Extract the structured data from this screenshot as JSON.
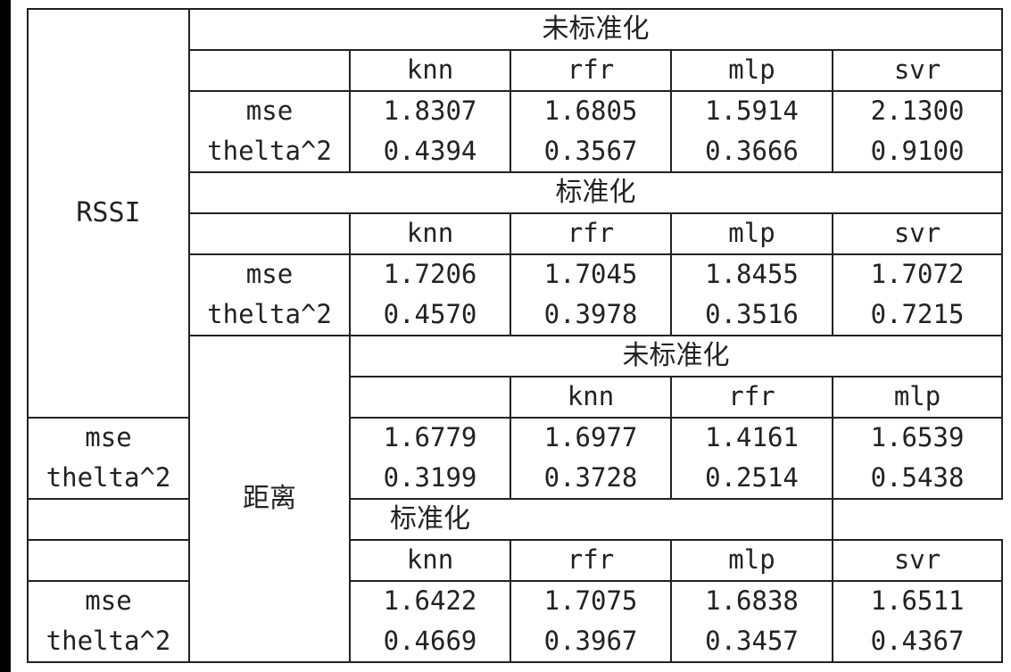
{
  "groups": [
    {
      "label": "RSSI",
      "sections": [
        {
          "title": "未标准化",
          "models": [
            "knn",
            "rfr",
            "mlp",
            "svr"
          ],
          "rows": [
            {
              "metric": "mse",
              "values": [
                "1.8307",
                "1.6805",
                "1.5914",
                "2.1300"
              ]
            },
            {
              "metric": "thelta^2",
              "values": [
                "0.4394",
                "0.3567",
                "0.3666",
                "0.9100"
              ]
            }
          ]
        },
        {
          "title": "标准化",
          "models": [
            "knn",
            "rfr",
            "mlp",
            "svr"
          ],
          "rows": [
            {
              "metric": "mse",
              "values": [
                "1.7206",
                "1.7045",
                "1.8455",
                "1.7072"
              ]
            },
            {
              "metric": "thelta^2",
              "values": [
                "0.4570",
                "0.3978",
                "0.3516",
                "0.7215"
              ]
            }
          ]
        }
      ]
    },
    {
      "label": "距离",
      "sections": [
        {
          "title": "未标准化",
          "models": [
            "knn",
            "rfr",
            "mlp",
            "svr"
          ],
          "rows": [
            {
              "metric": "mse",
              "values": [
                "1.6779",
                "1.6977",
                "1.4161",
                "1.6539"
              ]
            },
            {
              "metric": "thelta^2",
              "values": [
                "0.3199",
                "0.3728",
                "0.2514",
                "0.5438"
              ]
            }
          ]
        },
        {
          "title": "标准化",
          "models": [
            "knn",
            "rfr",
            "mlp",
            "svr"
          ],
          "rows": [
            {
              "metric": "mse",
              "values": [
                "1.6422",
                "1.7075",
                "1.6838",
                "1.6511"
              ]
            },
            {
              "metric": "thelta^2",
              "values": [
                "0.4669",
                "0.3967",
                "0.3457",
                "0.4367"
              ]
            }
          ]
        }
      ]
    }
  ]
}
